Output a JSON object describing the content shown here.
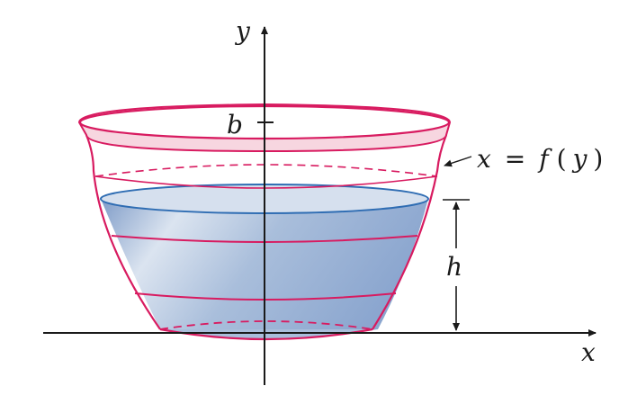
{
  "labels": {
    "y_axis": "y",
    "x_axis": "x",
    "b": "b",
    "h": "h",
    "curve_var": "x",
    "curve_eq": "=",
    "curve_fn": "f",
    "curve_open": "(",
    "curve_arg": "y",
    "curve_close": ")"
  },
  "colors": {
    "axis": "#1a1a1a",
    "bowl_outline": "#d81b60",
    "rim_fill": "#f7d6e0",
    "water_light": "#dbe4f0",
    "water_mid": "#a9bedb",
    "water_dark": "#7f9cc8",
    "water_surface": "#2f6db3"
  }
}
